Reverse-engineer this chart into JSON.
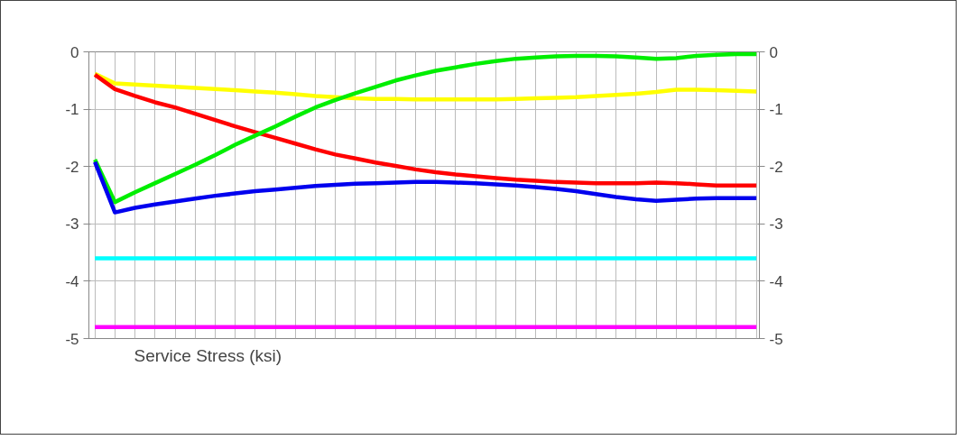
{
  "chart_data": {
    "type": "line",
    "xlabel": "Service Stress (ksi)",
    "categories": [
      null,
      null,
      null,
      null,
      null,
      null,
      null,
      null,
      null,
      null,
      null,
      null,
      null,
      null,
      null,
      null,
      null,
      null,
      null,
      null,
      null,
      null,
      null,
      null,
      null,
      null,
      null,
      null,
      null,
      null,
      null,
      null,
      null,
      null
    ],
    "series": [
      {
        "color": "#ffff00",
        "values": [
          -0.38,
          -0.55,
          -0.57,
          -0.59,
          -0.61,
          -0.63,
          -0.65,
          -0.67,
          -0.69,
          -0.71,
          -0.74,
          -0.77,
          -0.79,
          -0.81,
          -0.82,
          -0.82,
          -0.83,
          -0.83,
          -0.83,
          -0.83,
          -0.83,
          -0.82,
          -0.81,
          -0.8,
          -0.79,
          -0.77,
          -0.75,
          -0.73,
          -0.7,
          -0.66,
          -0.66,
          -0.67,
          -0.68,
          -0.69
        ]
      },
      {
        "color": "#ff0000",
        "values": [
          -0.4,
          -0.65,
          -0.77,
          -0.88,
          -0.97,
          -1.08,
          -1.19,
          -1.3,
          -1.4,
          -1.5,
          -1.6,
          -1.7,
          -1.79,
          -1.86,
          -1.93,
          -1.99,
          -2.05,
          -2.1,
          -2.14,
          -2.17,
          -2.2,
          -2.23,
          -2.25,
          -2.27,
          -2.28,
          -2.29,
          -2.29,
          -2.29,
          -2.28,
          -2.29,
          -2.31,
          -2.33,
          -2.33,
          -2.33
        ]
      },
      {
        "color": "#00ee00",
        "values": [
          -1.88,
          -2.62,
          -2.45,
          -2.29,
          -2.13,
          -1.97,
          -1.8,
          -1.62,
          -1.46,
          -1.3,
          -1.13,
          -0.97,
          -0.84,
          -0.72,
          -0.61,
          -0.5,
          -0.41,
          -0.33,
          -0.27,
          -0.21,
          -0.16,
          -0.12,
          -0.1,
          -0.08,
          -0.07,
          -0.07,
          -0.08,
          -0.1,
          -0.12,
          -0.11,
          -0.07,
          -0.05,
          -0.04,
          -0.04
        ]
      },
      {
        "color": "#0000ee",
        "values": [
          -1.92,
          -2.8,
          -2.72,
          -2.66,
          -2.61,
          -2.56,
          -2.51,
          -2.47,
          -2.43,
          -2.4,
          -2.37,
          -2.34,
          -2.32,
          -2.3,
          -2.29,
          -2.28,
          -2.27,
          -2.27,
          -2.28,
          -2.29,
          -2.31,
          -2.33,
          -2.36,
          -2.39,
          -2.43,
          -2.48,
          -2.53,
          -2.57,
          -2.6,
          -2.58,
          -2.56,
          -2.55,
          -2.55,
          -2.55
        ]
      },
      {
        "color": "#00ffff",
        "values": [
          -3.6,
          -3.6,
          -3.6,
          -3.6,
          -3.6,
          -3.6,
          -3.6,
          -3.6,
          -3.6,
          -3.6,
          -3.6,
          -3.6,
          -3.6,
          -3.6,
          -3.6,
          -3.6,
          -3.6,
          -3.6,
          -3.6,
          -3.6,
          -3.6,
          -3.6,
          -3.6,
          -3.6,
          -3.6,
          -3.6,
          -3.6,
          -3.6,
          -3.6,
          -3.6,
          -3.6,
          -3.6,
          -3.6,
          -3.6
        ]
      },
      {
        "color": "#ff00ff",
        "values": [
          -4.8,
          -4.8,
          -4.8,
          -4.8,
          -4.8,
          -4.8,
          -4.8,
          -4.8,
          -4.8,
          -4.8,
          -4.8,
          -4.8,
          -4.8,
          -4.8,
          -4.8,
          -4.8,
          -4.8,
          -4.8,
          -4.8,
          -4.8,
          -4.8,
          -4.8,
          -4.8,
          -4.8,
          -4.8,
          -4.8,
          -4.8,
          -4.8,
          -4.8,
          -4.8,
          -4.8,
          -4.8,
          -4.8,
          -4.8
        ]
      }
    ],
    "ylim": [
      -5,
      0
    ],
    "yticks": [
      -5,
      -4,
      -3,
      -2,
      -1,
      0
    ],
    "y2lim": [
      -5,
      0
    ],
    "y2ticks": [
      -5,
      -4,
      -3,
      -2,
      -1,
      0
    ],
    "tick_labels": "y",
    "grid": true,
    "marker": "none",
    "line_style": "solid"
  }
}
